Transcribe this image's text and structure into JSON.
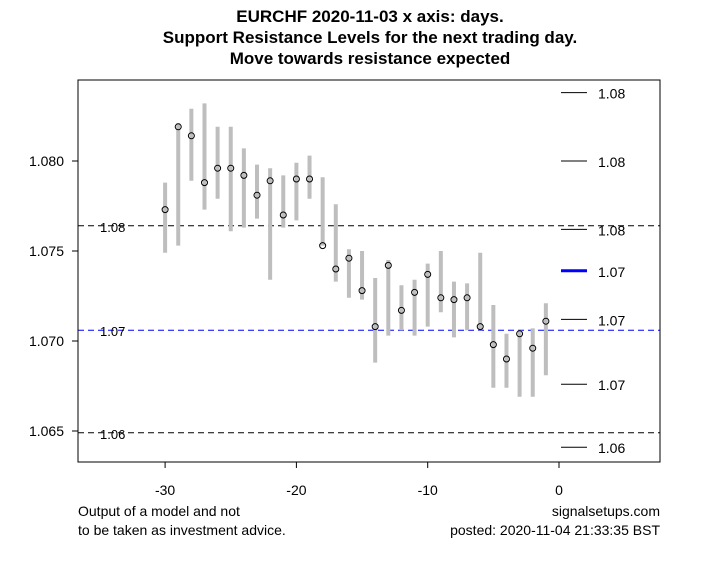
{
  "chart_data": {
    "type": "range-bar",
    "title": [
      "EURCHF 2020-11-03 x axis: days.",
      "Support Resistance Levels for the next trading day.",
      "Move towards resistance expected"
    ],
    "xlabel": "days",
    "xlim": [
      -36,
      7.7
    ],
    "ylim": [
      1.0634,
      1.0845
    ],
    "x_ticks": [
      -30,
      -20,
      -10,
      0
    ],
    "x_tick_labels": [
      "-30",
      "-20",
      "-10",
      "0"
    ],
    "y_ticks": [
      1.065,
      1.07,
      1.075,
      1.08
    ],
    "y_tick_labels": [
      "1.065",
      "1.070",
      "1.075",
      "1.080"
    ],
    "bars": [
      {
        "x": -30,
        "high": 1.0788,
        "low": 1.0749,
        "close": 1.0773
      },
      {
        "x": -29,
        "high": 1.0821,
        "low": 1.0753,
        "close": 1.0819
      },
      {
        "x": -28,
        "high": 1.0829,
        "low": 1.0789,
        "close": 1.0814
      },
      {
        "x": -27,
        "high": 1.0832,
        "low": 1.0773,
        "close": 1.0788
      },
      {
        "x": -26,
        "high": 1.0819,
        "low": 1.0779,
        "close": 1.0796
      },
      {
        "x": -25,
        "high": 1.0819,
        "low": 1.0761,
        "close": 1.0796
      },
      {
        "x": -24,
        "high": 1.0807,
        "low": 1.0763,
        "close": 1.0792
      },
      {
        "x": -23,
        "high": 1.0798,
        "low": 1.0768,
        "close": 1.0781
      },
      {
        "x": -22,
        "high": 1.0796,
        "low": 1.0734,
        "close": 1.0789
      },
      {
        "x": -21,
        "high": 1.0792,
        "low": 1.0763,
        "close": 1.077
      },
      {
        "x": -20,
        "high": 1.0799,
        "low": 1.0767,
        "close": 1.079
      },
      {
        "x": -19,
        "high": 1.0803,
        "low": 1.0779,
        "close": 1.079
      },
      {
        "x": -18,
        "high": 1.0791,
        "low": 1.0753,
        "close": 1.0753
      },
      {
        "x": -17,
        "high": 1.0776,
        "low": 1.0733,
        "close": 1.074
      },
      {
        "x": -16,
        "high": 1.0751,
        "low": 1.0724,
        "close": 1.0746
      },
      {
        "x": -15,
        "high": 1.075,
        "low": 1.0723,
        "close": 1.0728
      },
      {
        "x": -14,
        "high": 1.0735,
        "low": 1.0688,
        "close": 1.0708
      },
      {
        "x": -13,
        "high": 1.0745,
        "low": 1.0703,
        "close": 1.0742
      },
      {
        "x": -12,
        "high": 1.0731,
        "low": 1.0706,
        "close": 1.0717
      },
      {
        "x": -11,
        "high": 1.0734,
        "low": 1.0703,
        "close": 1.0727
      },
      {
        "x": -10,
        "high": 1.0743,
        "low": 1.0708,
        "close": 1.0737
      },
      {
        "x": -9,
        "high": 1.075,
        "low": 1.0716,
        "close": 1.0724
      },
      {
        "x": -8,
        "high": 1.0733,
        "low": 1.0702,
        "close": 1.0723
      },
      {
        "x": -7,
        "high": 1.0732,
        "low": 1.0706,
        "close": 1.0724
      },
      {
        "x": -6,
        "high": 1.0749,
        "low": 1.0706,
        "close": 1.0708
      },
      {
        "x": -5,
        "high": 1.072,
        "low": 1.0674,
        "close": 1.0698
      },
      {
        "x": -4,
        "high": 1.0704,
        "low": 1.0674,
        "close": 1.069
      },
      {
        "x": -3,
        "high": 1.0706,
        "low": 1.0669,
        "close": 1.0704
      },
      {
        "x": -2,
        "high": 1.0707,
        "low": 1.0669,
        "close": 1.0696
      },
      {
        "x": -1,
        "high": 1.0721,
        "low": 1.0681,
        "close": 1.0711
      }
    ],
    "horizontal_lines": [
      {
        "value": 1.0764,
        "label": "1.08",
        "color": "#000000"
      },
      {
        "value": 1.0706,
        "label": "1.07",
        "color": "#0000ff"
      },
      {
        "value": 1.0649,
        "label": "1.06",
        "color": "#000000"
      }
    ],
    "levels": [
      {
        "value": 1.0838,
        "label": "1.08",
        "color": "#000000"
      },
      {
        "value": 1.08,
        "label": "1.08",
        "color": "#000000"
      },
      {
        "value": 1.0762,
        "label": "1.08",
        "color": "#000000"
      },
      {
        "value": 1.0739,
        "label": "1.07",
        "color": "#0000ff",
        "highlight": true
      },
      {
        "value": 1.0712,
        "label": "1.07",
        "color": "#000000"
      },
      {
        "value": 1.0676,
        "label": "1.07",
        "color": "#000000"
      },
      {
        "value": 1.0641,
        "label": "1.06",
        "color": "#000000"
      }
    ],
    "bar_color": "#bebebe"
  },
  "footer": {
    "left_line1": "Output of a model and not",
    "left_line2": "to be taken as investment advice.",
    "right_line1": "signalsetups.com",
    "right_line2": "posted: 2020-11-04 21:33:35 BST"
  }
}
